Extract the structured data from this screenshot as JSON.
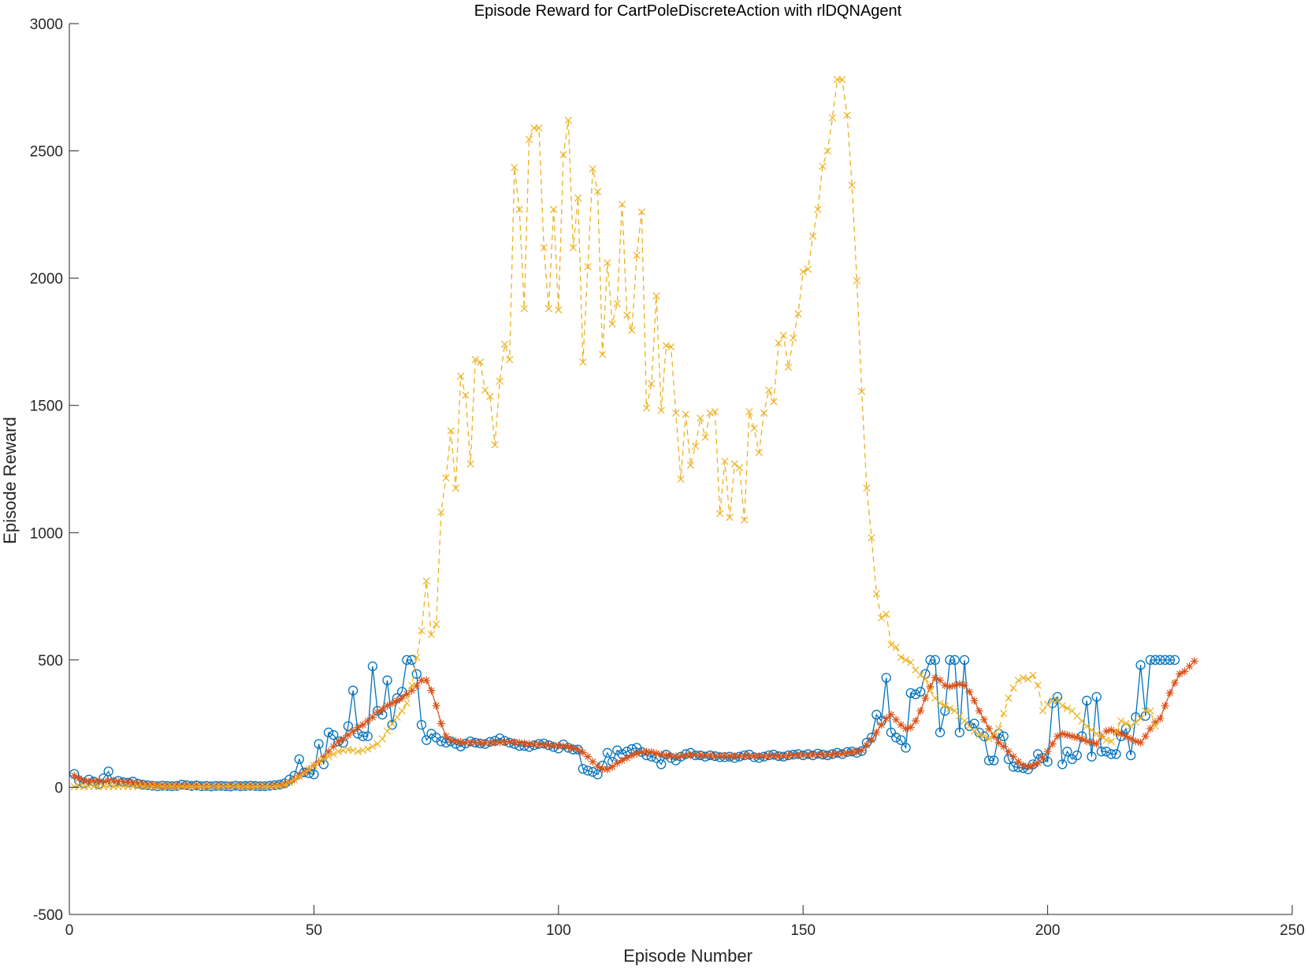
{
  "chart_data": {
    "type": "line",
    "title": "Episode Reward for CartPoleDiscreteAction with rlDQNAgent",
    "xlabel": "Episode Number",
    "ylabel": "Episode Reward",
    "xlim": [
      0,
      250
    ],
    "ylim": [
      -500,
      3000
    ],
    "xticks": [
      0,
      50,
      100,
      150,
      200,
      250
    ],
    "yticks": [
      -500,
      0,
      500,
      1000,
      1500,
      2000,
      2500,
      3000
    ],
    "grid": false,
    "legend": "none",
    "series": [
      {
        "color": "#0072BD",
        "marker": "circle",
        "line": "solid",
        "values": [
          52,
          25,
          15,
          30,
          22,
          12,
          35,
          62,
          18,
          25,
          20,
          18,
          22,
          14,
          10,
          8,
          6,
          4,
          6,
          5,
          4,
          5,
          10,
          8,
          5,
          7,
          4,
          5,
          3,
          5,
          5,
          4,
          3,
          6,
          4,
          5,
          6,
          5,
          4,
          4,
          6,
          8,
          10,
          15,
          30,
          45,
          110,
          58,
          55,
          50,
          170,
          90,
          215,
          205,
          180,
          175,
          240,
          380,
          210,
          200,
          200,
          475,
          300,
          285,
          420,
          245,
          350,
          375,
          500,
          500,
          445,
          245,
          185,
          210,
          195,
          180,
          175,
          180,
          170,
          160,
          172,
          180,
          175,
          172,
          170,
          178,
          182,
          192,
          182,
          175,
          170,
          162,
          162,
          158,
          165,
          170,
          172,
          165,
          158,
          152,
          168,
          155,
          148,
          148,
          72,
          65,
          60,
          50,
          85,
          135,
          100,
          145,
          130,
          140,
          150,
          155,
          138,
          125,
          120,
          115,
          90,
          128,
          115,
          105,
          120,
          130,
          135,
          125,
          125,
          120,
          125,
          122,
          118,
          118,
          120,
          115,
          120,
          125,
          128,
          118,
          115,
          120,
          125,
          128,
          122,
          120,
          125,
          128,
          130,
          125,
          130,
          125,
          132,
          128,
          125,
          130,
          135,
          130,
          138,
          140,
          135,
          142,
          175,
          195,
          285,
          260,
          430,
          215,
          195,
          185,
          155,
          370,
          365,
          375,
          445,
          500,
          500,
          215,
          300,
          500,
          500,
          215,
          500,
          240,
          250,
          215,
          200,
          105,
          105,
          210,
          200,
          110,
          80,
          78,
          75,
          70,
          90,
          130,
          115,
          100,
          330,
          355,
          90,
          140,
          110,
          125,
          200,
          340,
          120,
          355,
          140,
          140,
          130,
          130,
          200,
          230,
          125,
          275,
          480,
          280,
          500,
          500,
          500,
          500,
          500,
          500
        ]
      },
      {
        "color": "#D95319",
        "marker": "asterisk",
        "line": "solid",
        "values": [
          45,
          35,
          25,
          22,
          25,
          22,
          22,
          25,
          25,
          22,
          22,
          20,
          18,
          15,
          12,
          10,
          9,
          8,
          7,
          6,
          6,
          6,
          6,
          6,
          6,
          6,
          5,
          5,
          5,
          5,
          5,
          5,
          5,
          5,
          5,
          5,
          5,
          5,
          5,
          5,
          5,
          6,
          8,
          12,
          20,
          30,
          45,
          58,
          70,
          85,
          100,
          118,
          140,
          160,
          178,
          190,
          205,
          220,
          235,
          245,
          260,
          275,
          295,
          305,
          320,
          330,
          340,
          350,
          365,
          380,
          398,
          420,
          420,
          380,
          320,
          250,
          200,
          185,
          180,
          178,
          175,
          175,
          175,
          175,
          174,
          174,
          175,
          176,
          177,
          178,
          177,
          175,
          172,
          170,
          168,
          167,
          166,
          165,
          164,
          163,
          161,
          158,
          154,
          147,
          136,
          120,
          100,
          82,
          72,
          70,
          80,
          95,
          105,
          115,
          125,
          132,
          138,
          140,
          138,
          133,
          128,
          125,
          122,
          121,
          122,
          124,
          126,
          127,
          126,
          125,
          124,
          123,
          123,
          123,
          122,
          122,
          122,
          122,
          122,
          122,
          122,
          122,
          122,
          122,
          122,
          123,
          124,
          125,
          126,
          126,
          126,
          127,
          127,
          128,
          128,
          129,
          130,
          132,
          134,
          137,
          140,
          145,
          165,
          185,
          215,
          245,
          270,
          285,
          265,
          245,
          230,
          235,
          260,
          300,
          350,
          395,
          430,
          420,
          400,
          395,
          400,
          405,
          400,
          375,
          340,
          300,
          265,
          230,
          200,
          175,
          160,
          140,
          120,
          100,
          85,
          80,
          85,
          95,
          115,
          140,
          170,
          200,
          210,
          205,
          200,
          195,
          190,
          180,
          175,
          170,
          200,
          220,
          225,
          215,
          210,
          200,
          190,
          180,
          175,
          200,
          230,
          255,
          270,
          320,
          370,
          410,
          445,
          455,
          475,
          495
        ]
      },
      {
        "color": "#EDB120",
        "marker": "x",
        "line": "dashed",
        "values": [
          2,
          3,
          3,
          3,
          3,
          3,
          3,
          3,
          3,
          3,
          3,
          3,
          3,
          3,
          3,
          3,
          3,
          3,
          3,
          3,
          3,
          3,
          3,
          3,
          3,
          3,
          3,
          3,
          3,
          3,
          3,
          3,
          3,
          3,
          3,
          3,
          3,
          3,
          3,
          3,
          3,
          4,
          6,
          10,
          18,
          30,
          42,
          56,
          70,
          85,
          100,
          110,
          120,
          130,
          140,
          145,
          148,
          145,
          140,
          145,
          150,
          160,
          170,
          190,
          220,
          250,
          275,
          300,
          330,
          400,
          510,
          615,
          810,
          600,
          640,
          1080,
          1215,
          1400,
          1175,
          1615,
          1540,
          1270,
          1680,
          1670,
          1560,
          1535,
          1345,
          1595,
          1740,
          1680,
          2435,
          2270,
          1880,
          2545,
          2590,
          2590,
          2120,
          1880,
          2270,
          1875,
          2485,
          2620,
          2120,
          2315,
          1670,
          2045,
          2430,
          2340,
          1700,
          2060,
          1820,
          1900,
          2290,
          1855,
          1795,
          2090,
          2260,
          1490,
          1585,
          1930,
          1480,
          1735,
          1730,
          1470,
          1210,
          1465,
          1265,
          1340,
          1450,
          1375,
          1470,
          1475,
          1075,
          1280,
          1060,
          1270,
          1255,
          1050,
          1475,
          1410,
          1315,
          1470,
          1560,
          1515,
          1745,
          1775,
          1650,
          1765,
          1860,
          2025,
          2035,
          2165,
          2270,
          2440,
          2500,
          2630,
          2780,
          2780,
          2640,
          2365,
          1990,
          1555,
          1175,
          980,
          760,
          665,
          680,
          560,
          550,
          510,
          500,
          490,
          460,
          440,
          425,
          380,
          350,
          330,
          320,
          310,
          300,
          280,
          260,
          240,
          220,
          205,
          200,
          190,
          210,
          230,
          290,
          350,
          390,
          420,
          430,
          425,
          440,
          400,
          300,
          325,
          340,
          340,
          320,
          310,
          300,
          280,
          260,
          240,
          225,
          210,
          200,
          185,
          180,
          220,
          260,
          250,
          240,
          255,
          270,
          300,
          300,
          240
        ]
      }
    ]
  }
}
